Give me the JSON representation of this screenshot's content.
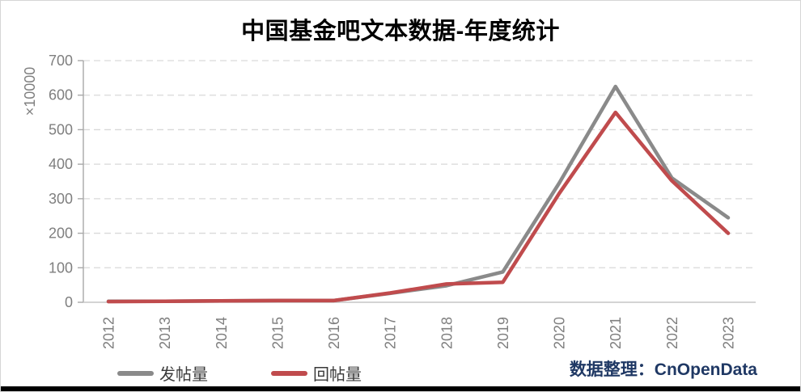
{
  "chart_data": {
    "type": "line",
    "title": "中国基金吧文本数据-年度统计",
    "categories": [
      "2012",
      "2013",
      "2014",
      "2015",
      "2016",
      "2017",
      "2018",
      "2019",
      "2020",
      "2021",
      "2022",
      "2023"
    ],
    "series": [
      {
        "name": "发帖量",
        "color": "#8a8a8a",
        "values": [
          3,
          3,
          4,
          5,
          5,
          26,
          48,
          88,
          345,
          625,
          360,
          245
        ]
      },
      {
        "name": "回帖量",
        "color": "#c04b4d",
        "values": [
          2,
          3,
          4,
          5,
          5,
          27,
          53,
          58,
          315,
          550,
          352,
          200
        ]
      }
    ],
    "xlabel": "",
    "ylabel": "×10000",
    "ylim": [
      0,
      700
    ],
    "ytick_step": 100,
    "yticks": [
      "0",
      "100",
      "200",
      "300",
      "400",
      "500",
      "600",
      "700"
    ],
    "grid": "horizontal-dashed",
    "legend_position": "bottom-left",
    "axis_color": "#a9a9a9",
    "grid_color": "#d9d9d9",
    "tick_label_color": "#7f7f7f"
  },
  "footer": {
    "credit": "数据整理：CnOpenData",
    "credit_color": "#1f3864"
  }
}
